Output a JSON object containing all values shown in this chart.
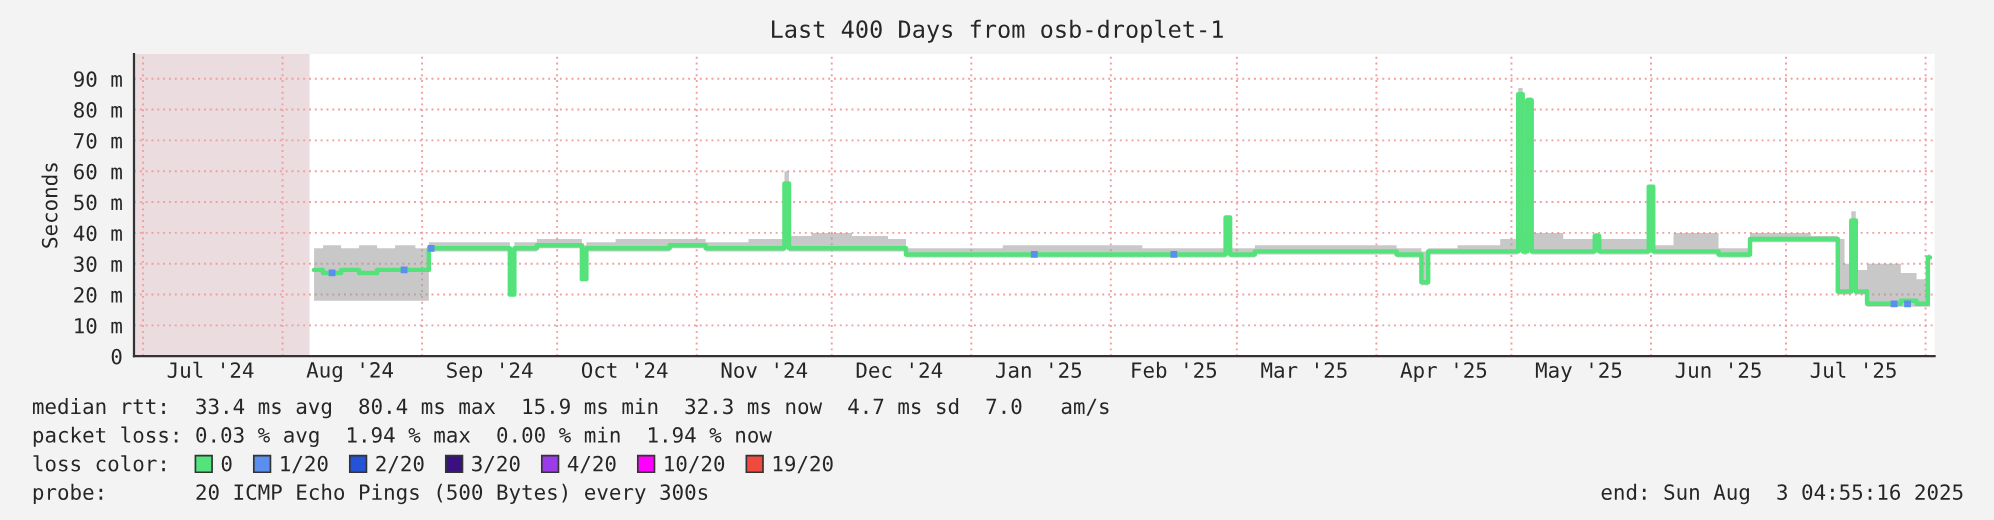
{
  "chart_data": {
    "type": "line",
    "title": "Last 400 Days from osb-droplet-1",
    "ylabel": "Seconds",
    "x": [
      "2024-08-08",
      "2024-08-12",
      "2024-08-16",
      "2024-08-20",
      "2024-08-24",
      "2024-08-28",
      "2024-09-02",
      "2024-09-03",
      "2024-09-10",
      "2024-09-20",
      "2024-09-21",
      "2024-09-22",
      "2024-10-01",
      "2024-10-06",
      "2024-10-07",
      "2024-10-08",
      "2024-10-20",
      "2024-11-01",
      "2024-11-05",
      "2024-11-20",
      "2024-11-21",
      "2024-11-22",
      "2024-12-01",
      "2024-12-10",
      "2024-12-17",
      "2024-12-18",
      "2025-01-01",
      "2025-01-15",
      "2025-02-01",
      "2025-02-15",
      "2025-02-26",
      "2025-02-27",
      "2025-02-28",
      "2025-03-10",
      "2025-04-01",
      "2025-04-10",
      "2025-04-12",
      "2025-04-13",
      "2025-04-25",
      "2025-05-02",
      "2025-05-03",
      "2025-05-04",
      "2025-05-05",
      "2025-05-06",
      "2025-05-19",
      "2025-05-20",
      "2025-05-21",
      "2025-05-31",
      "2025-06-01",
      "2025-06-02",
      "2025-06-10",
      "2025-06-22",
      "2025-06-24",
      "2025-07-01",
      "2025-07-12",
      "2025-07-13",
      "2025-07-15",
      "2025-07-16",
      "2025-07-17",
      "2025-07-21",
      "2025-07-25",
      "2025-07-28",
      "2025-08-01",
      "2025-08-02"
    ],
    "series": [
      {
        "name": "0",
        "color": "#54e27a",
        "values": [
          28,
          27,
          28,
          27,
          28,
          28,
          28,
          35,
          35,
          35,
          20,
          35,
          36,
          36,
          25,
          35,
          35,
          36,
          35,
          35,
          56,
          35,
          35,
          35,
          35,
          33,
          33,
          33,
          33,
          33,
          33,
          45,
          33,
          34,
          34,
          33,
          24,
          34,
          34,
          34,
          85,
          34,
          83,
          34,
          34,
          39,
          34,
          34,
          55,
          34,
          34,
          33,
          38,
          38,
          38,
          21,
          21,
          44,
          21,
          17,
          17,
          18,
          17,
          32
        ],
        "lower": [
          18,
          18,
          18,
          18,
          18,
          18,
          18,
          34,
          34,
          34,
          20,
          34,
          35,
          35,
          25,
          34,
          34,
          35,
          34,
          34,
          35,
          34,
          34,
          34,
          34,
          32,
          32,
          32,
          32,
          32,
          32,
          33,
          32,
          33,
          33,
          32,
          23,
          33,
          33,
          33,
          34,
          33,
          34,
          33,
          33,
          34,
          33,
          33,
          34,
          33,
          33,
          32,
          37,
          37,
          37,
          20,
          20,
          21,
          20,
          16,
          16,
          16,
          16,
          16
        ],
        "upper": [
          35,
          36,
          35,
          36,
          35,
          36,
          35,
          37,
          37,
          37,
          35,
          37,
          38,
          38,
          36,
          37,
          38,
          38,
          37,
          38,
          60,
          39,
          40,
          39,
          38,
          35,
          35,
          36,
          36,
          35,
          35,
          45,
          35,
          36,
          36,
          35,
          34,
          35,
          36,
          38,
          87,
          40,
          84,
          40,
          38,
          40,
          38,
          38,
          55,
          36,
          40,
          35,
          40,
          40,
          39,
          38,
          30,
          47,
          28,
          30,
          30,
          27,
          25,
          33
        ]
      },
      {
        "name": "1/20",
        "color": "#5b8fef",
        "type": "scatter",
        "values": [
          null,
          27,
          null,
          null,
          null,
          28,
          null,
          35,
          null,
          null,
          null,
          null,
          null,
          null,
          null,
          null,
          null,
          null,
          null,
          null,
          null,
          null,
          null,
          null,
          null,
          null,
          null,
          33,
          null,
          33,
          null,
          null,
          null,
          null,
          null,
          null,
          null,
          null,
          null,
          null,
          null,
          null,
          null,
          null,
          null,
          null,
          null,
          null,
          null,
          null,
          null,
          null,
          null,
          null,
          null,
          null,
          null,
          null,
          null,
          null,
          17,
          17,
          null,
          null
        ]
      },
      {
        "name": "2/20",
        "color": "#2453d8",
        "type": "scatter",
        "values": [
          null,
          null,
          null,
          null,
          null,
          null,
          null,
          null,
          null,
          null,
          null,
          null,
          null,
          null,
          null,
          null,
          null,
          null,
          null,
          null,
          null,
          null,
          null,
          null,
          null,
          null,
          null,
          null,
          null,
          null,
          null,
          null,
          null,
          null,
          null,
          null,
          null,
          null,
          null,
          null,
          null,
          null,
          null,
          null,
          null,
          null,
          null,
          null,
          null,
          null,
          null,
          null,
          null,
          null,
          null,
          null,
          null,
          null,
          null,
          null,
          null,
          null,
          null,
          null
        ]
      },
      {
        "name": "3/20",
        "color": "#3a0f7e",
        "type": "scatter",
        "values": [
          null,
          null,
          null,
          null,
          null,
          null,
          null,
          null,
          null,
          null,
          null,
          null,
          null,
          null,
          null,
          null,
          null,
          null,
          null,
          null,
          null,
          null,
          null,
          null,
          null,
          null,
          null,
          null,
          null,
          null,
          null,
          null,
          null,
          null,
          null,
          null,
          null,
          null,
          null,
          null,
          null,
          null,
          null,
          null,
          null,
          null,
          null,
          null,
          null,
          null,
          null,
          null,
          null,
          null,
          null,
          null,
          null,
          null,
          null,
          null,
          null,
          null,
          null,
          null
        ]
      },
      {
        "name": "4/20",
        "color": "#9a3de8",
        "type": "scatter",
        "values": [
          null,
          null,
          null,
          null,
          null,
          null,
          null,
          null,
          null,
          null,
          null,
          null,
          null,
          null,
          null,
          null,
          null,
          null,
          null,
          null,
          null,
          null,
          null,
          null,
          null,
          null,
          null,
          null,
          null,
          null,
          null,
          null,
          null,
          null,
          null,
          null,
          null,
          null,
          null,
          null,
          null,
          null,
          null,
          null,
          null,
          null,
          null,
          null,
          null,
          null,
          null,
          null,
          null,
          null,
          null,
          null,
          null,
          null,
          null,
          null,
          null,
          null,
          null,
          null
        ]
      },
      {
        "name": "10/20",
        "color": "#ff00ff",
        "type": "scatter",
        "values": [
          null,
          null,
          null,
          null,
          null,
          null,
          null,
          null,
          null,
          null,
          null,
          null,
          null,
          null,
          null,
          null,
          null,
          null,
          null,
          null,
          null,
          null,
          null,
          null,
          null,
          null,
          null,
          null,
          null,
          null,
          null,
          null,
          null,
          null,
          null,
          null,
          null,
          null,
          null,
          null,
          null,
          null,
          null,
          null,
          null,
          null,
          null,
          null,
          null,
          null,
          null,
          null,
          null,
          null,
          null,
          null,
          null,
          null,
          null,
          null,
          null,
          null,
          null,
          null
        ]
      },
      {
        "name": "19/20",
        "color": "#f04a3f",
        "type": "scatter",
        "values": [
          null,
          null,
          null,
          null,
          null,
          null,
          null,
          null,
          null,
          null,
          null,
          null,
          null,
          null,
          null,
          null,
          null,
          null,
          null,
          null,
          null,
          null,
          null,
          null,
          null,
          null,
          null,
          null,
          null,
          null,
          null,
          null,
          null,
          null,
          null,
          null,
          null,
          null,
          null,
          null,
          null,
          null,
          null,
          null,
          null,
          null,
          null,
          null,
          null,
          null,
          null,
          null,
          null,
          null,
          null,
          null,
          null,
          null,
          null,
          null,
          null,
          null,
          null,
          null
        ]
      }
    ],
    "legend_title": "loss color:",
    "legend": "bottom left",
    "xlim": [
      "2024-06-29",
      "2025-08-03"
    ],
    "xticks": [
      {
        "value": "2024-07-01",
        "label": null
      },
      {
        "value": "2024-07-16",
        "label": "Jul '24"
      },
      {
        "value": "2024-08-01",
        "label": null
      },
      {
        "value": "2024-08-16",
        "label": "Aug '24"
      },
      {
        "value": "2024-09-01",
        "label": null
      },
      {
        "value": "2024-09-16",
        "label": "Sep '24"
      },
      {
        "value": "2024-10-01",
        "label": null
      },
      {
        "value": "2024-10-16",
        "label": "Oct '24"
      },
      {
        "value": "2024-11-01",
        "label": null
      },
      {
        "value": "2024-11-16",
        "label": "Nov '24"
      },
      {
        "value": "2024-12-01",
        "label": null
      },
      {
        "value": "2024-12-16",
        "label": "Dec '24"
      },
      {
        "value": "2025-01-01",
        "label": null
      },
      {
        "value": "2025-01-16",
        "label": "Jan '25"
      },
      {
        "value": "2025-02-01",
        "label": null
      },
      {
        "value": "2025-02-15",
        "label": "Feb '25"
      },
      {
        "value": "2025-03-01",
        "label": null
      },
      {
        "value": "2025-03-16",
        "label": "Mar '25"
      },
      {
        "value": "2025-04-01",
        "label": null
      },
      {
        "value": "2025-04-16",
        "label": "Apr '25"
      },
      {
        "value": "2025-05-01",
        "label": null
      },
      {
        "value": "2025-05-16",
        "label": "May '25"
      },
      {
        "value": "2025-06-01",
        "label": null
      },
      {
        "value": "2025-06-16",
        "label": "Jun '25"
      },
      {
        "value": "2025-07-01",
        "label": null
      },
      {
        "value": "2025-07-16",
        "label": "Jul '25"
      },
      {
        "value": "2025-08-01",
        "label": null
      }
    ],
    "ylim": [
      0,
      98
    ],
    "yticks": [
      0,
      {
        "value": 10,
        "label": "10 m"
      },
      {
        "value": 20,
        "label": "20 m"
      },
      {
        "value": 30,
        "label": "30 m"
      },
      {
        "value": 40,
        "label": "40 m"
      },
      {
        "value": 50,
        "label": "50 m"
      },
      {
        "value": 60,
        "label": "60 m"
      },
      {
        "value": 70,
        "label": "70 m"
      },
      {
        "value": 80,
        "label": "80 m"
      },
      {
        "value": 90,
        "label": "90 m"
      }
    ],
    "grid": true,
    "bands": [
      {
        "axis": "x",
        "from": "2024-06-29",
        "to": "2024-08-07",
        "color": "#eadcdf"
      }
    ],
    "annotations": [
      "median rtt:  33.4 ms avg  80.4 ms max  15.9 ms min  32.3 ms now  4.7 ms sd  7.0   am/s",
      "packet loss: 0.03 % avg  1.94 % max  0.00 % min  1.94 % now",
      "probe:       20 ICMP Echo Pings (500 Bytes) every 300s",
      "end: Sun Aug  3 04:55:16 2025"
    ]
  }
}
